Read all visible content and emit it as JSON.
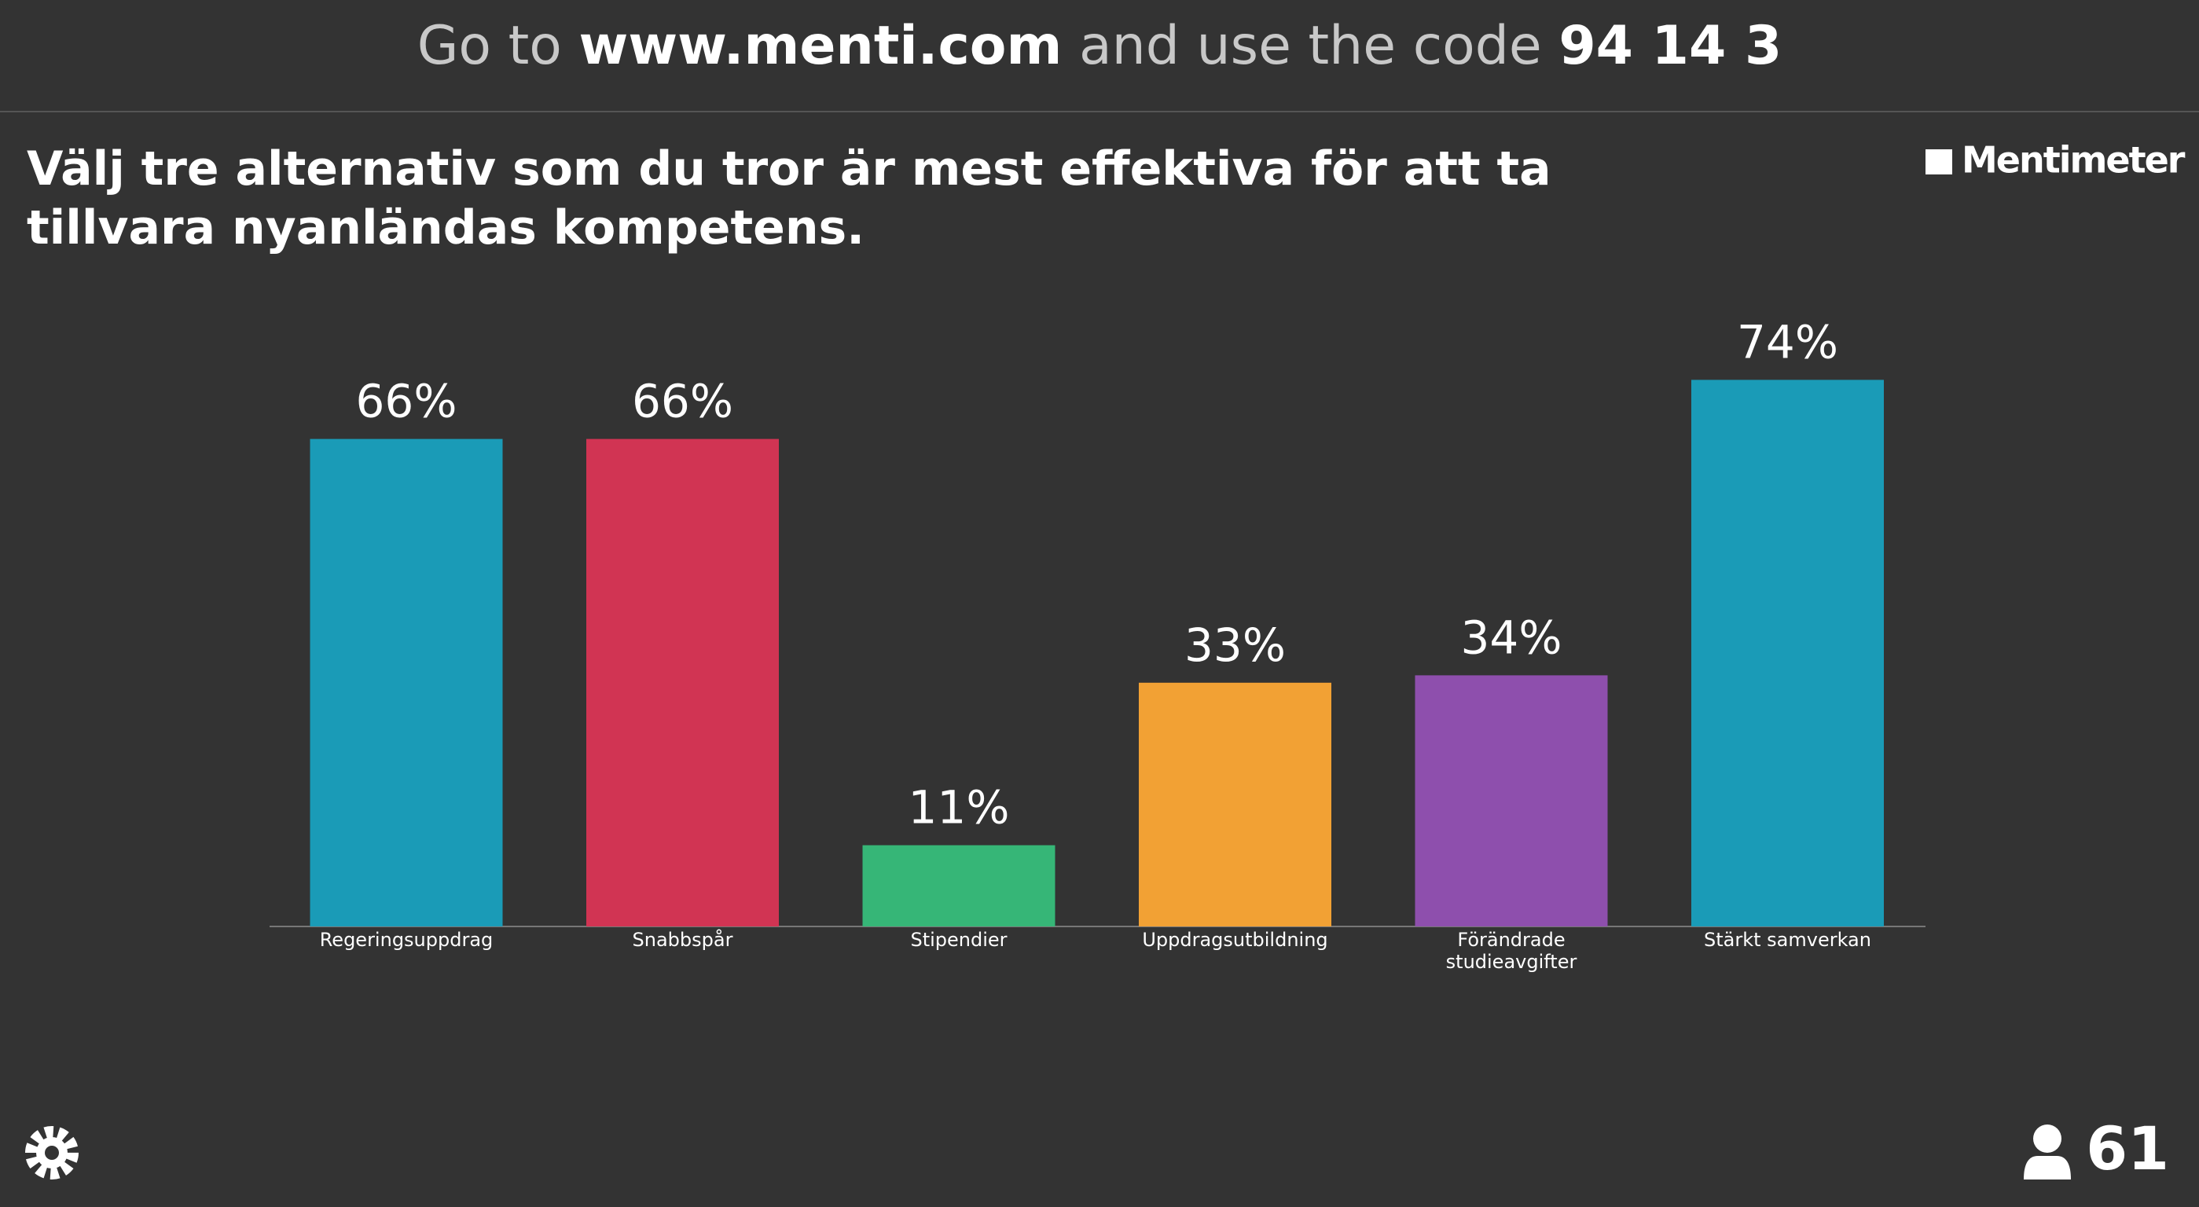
{
  "header": {
    "prefix": "Go to",
    "url": "www.menti.com",
    "middle": "and use the code",
    "code": "94 14 3"
  },
  "brand": "Mentimeter",
  "participants": "61",
  "chart_data": {
    "type": "bar",
    "title": "Välj tre alternativ som du tror är mest effektiva för att ta tillvara nyanländas kompetens.",
    "categories": [
      "Regeringsuppdrag",
      "Snabbspår",
      "Stipendier",
      "Uppdragsutbildning",
      "Förändrade studieavgifter",
      "Stärkt samverkan"
    ],
    "values": [
      66,
      66,
      11,
      33,
      34,
      74
    ],
    "value_labels": [
      "66%",
      "66%",
      "11%",
      "33%",
      "34%",
      "74%"
    ],
    "colors": [
      "#1a9bb7",
      "#d13453",
      "#36b677",
      "#f2a134",
      "#8e4fad",
      "#1a9bb7"
    ]
  }
}
